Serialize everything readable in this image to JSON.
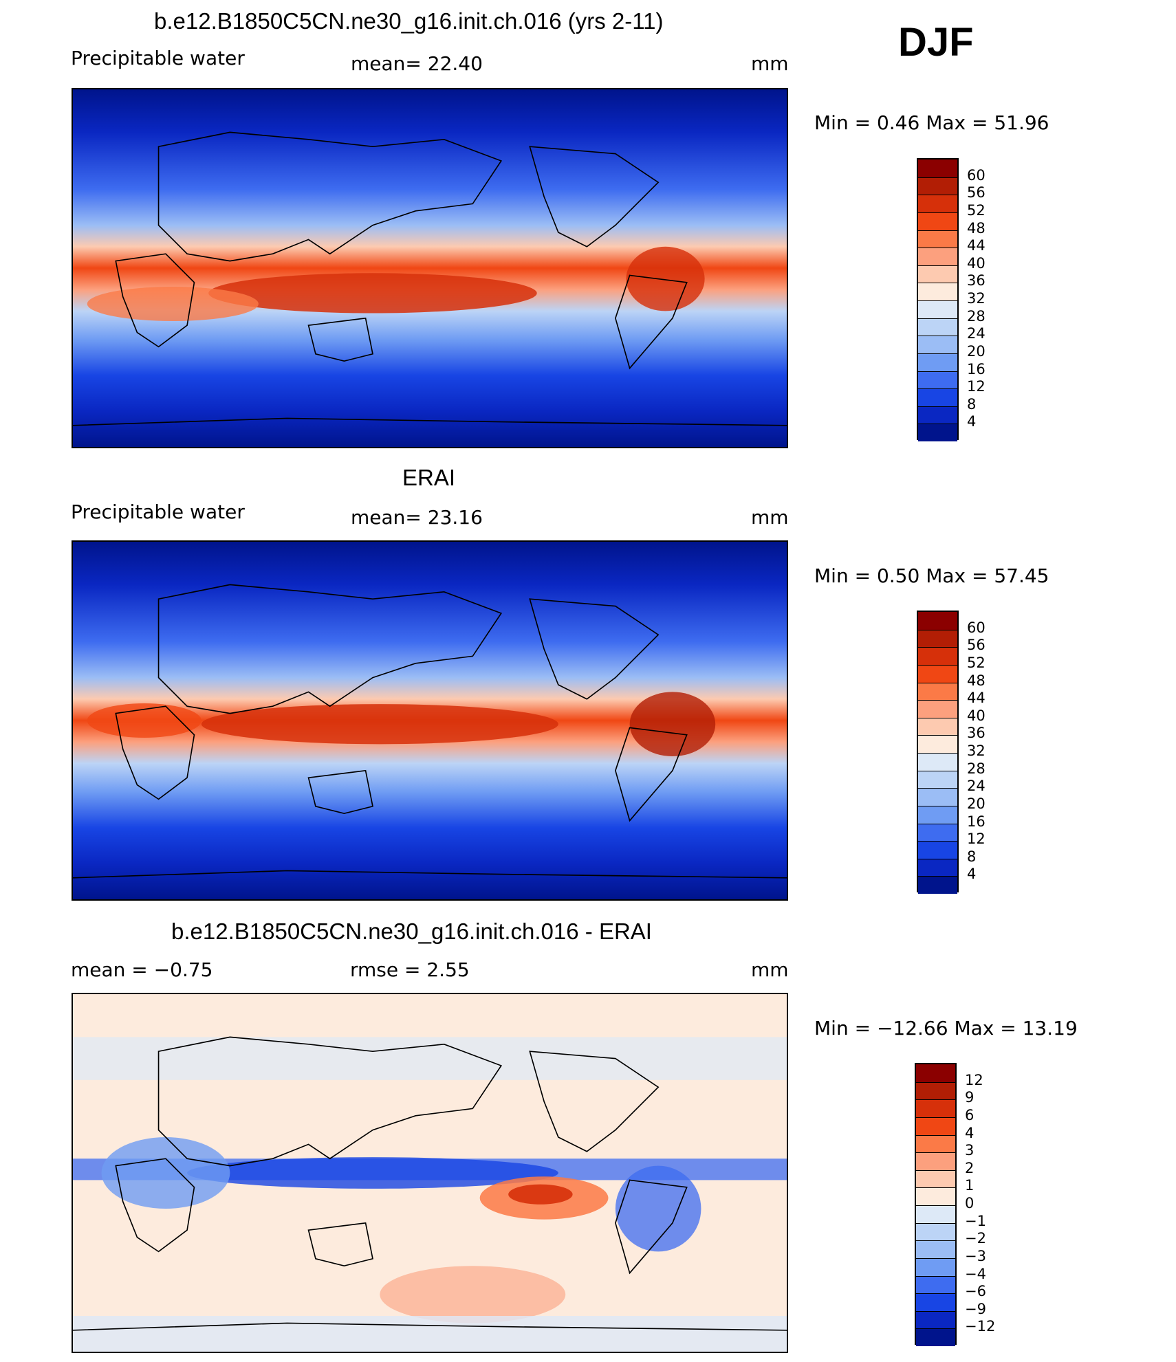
{
  "season": "DJF",
  "unit": "mm",
  "panels": [
    {
      "title": "b.e12.B1850C5CN.ne30_g16.init.ch.016 (yrs 2-11)",
      "left_label": "Precipitable  water",
      "mid_label": "mean=    22.40",
      "right_label": "mm",
      "minmax": "Min  =     0.46  Max  =    51.96",
      "colorbar": {
        "labels": [
          "60",
          "56",
          "52",
          "48",
          "44",
          "40",
          "36",
          "32",
          "28",
          "24",
          "20",
          "16",
          "12",
          "8",
          "4"
        ],
        "colors": [
          "#8b0000",
          "#b21e05",
          "#d6300a",
          "#f04714",
          "#fb7a47",
          "#fca07e",
          "#fdcab0",
          "#fdebdd",
          "#dde9f7",
          "#bcd4f6",
          "#9bbdf5",
          "#6f9cf3",
          "#3e6cf0",
          "#1845e4",
          "#0a27c2",
          "#00148c"
        ]
      }
    },
    {
      "title": "ERAI",
      "left_label": "Precipitable  water",
      "mid_label": "mean=    23.16",
      "right_label": "mm",
      "minmax": "Min  =     0.50  Max  =    57.45",
      "colorbar": {
        "labels": [
          "60",
          "56",
          "52",
          "48",
          "44",
          "40",
          "36",
          "32",
          "28",
          "24",
          "20",
          "16",
          "12",
          "8",
          "4"
        ],
        "colors": [
          "#8b0000",
          "#b21e05",
          "#d6300a",
          "#f04714",
          "#fb7a47",
          "#fca07e",
          "#fdcab0",
          "#fdebdd",
          "#dde9f7",
          "#bcd4f6",
          "#9bbdf5",
          "#6f9cf3",
          "#3e6cf0",
          "#1845e4",
          "#0a27c2",
          "#00148c"
        ]
      }
    },
    {
      "title": "b.e12.B1850C5CN.ne30_g16.init.ch.016 - ERAI",
      "left_label": "mean  =    −0.75",
      "mid_label": "rmse  =     2.55",
      "right_label": "mm",
      "minmax": "Min  =  −12.66  Max  =    13.19",
      "colorbar": {
        "labels": [
          "12",
          "9",
          "6",
          "4",
          "3",
          "2",
          "1",
          "0",
          "−1",
          "−2",
          "−3",
          "−4",
          "−6",
          "−9",
          "−12"
        ],
        "colors": [
          "#8b0000",
          "#b21e05",
          "#d6300a",
          "#f04714",
          "#fb7a47",
          "#fca07e",
          "#fdcab0",
          "#fdebdd",
          "#dde9f7",
          "#bcd4f6",
          "#9bbdf5",
          "#6f9cf3",
          "#3e6cf0",
          "#1845e4",
          "#0a27c2",
          "#00148c"
        ]
      }
    }
  ],
  "chart_data": [
    {
      "type": "heatmap",
      "title": "b.e12.B1850C5CN.ne30_g16.init.ch.016 (yrs 2-11)",
      "variable": "Precipitable  water",
      "units": "mm",
      "mean": 22.4,
      "min": 0.46,
      "max": 51.96,
      "contour_levels": [
        4,
        8,
        12,
        16,
        20,
        24,
        28,
        32,
        36,
        40,
        44,
        48,
        52,
        56,
        60
      ]
    },
    {
      "type": "heatmap",
      "title": "ERAI",
      "variable": "Precipitable  water",
      "units": "mm",
      "mean": 23.16,
      "min": 0.5,
      "max": 57.45,
      "contour_levels": [
        4,
        8,
        12,
        16,
        20,
        24,
        28,
        32,
        36,
        40,
        44,
        48,
        52,
        56,
        60
      ]
    },
    {
      "type": "heatmap",
      "title": "b.e12.B1850C5CN.ne30_g16.init.ch.016 - ERAI",
      "units": "mm",
      "mean": -0.75,
      "rmse": 2.55,
      "min": -12.66,
      "max": 13.19,
      "contour_levels": [
        -12,
        -9,
        -6,
        -4,
        -3,
        -2,
        -1,
        0,
        1,
        2,
        3,
        4,
        6,
        9,
        12
      ]
    }
  ]
}
